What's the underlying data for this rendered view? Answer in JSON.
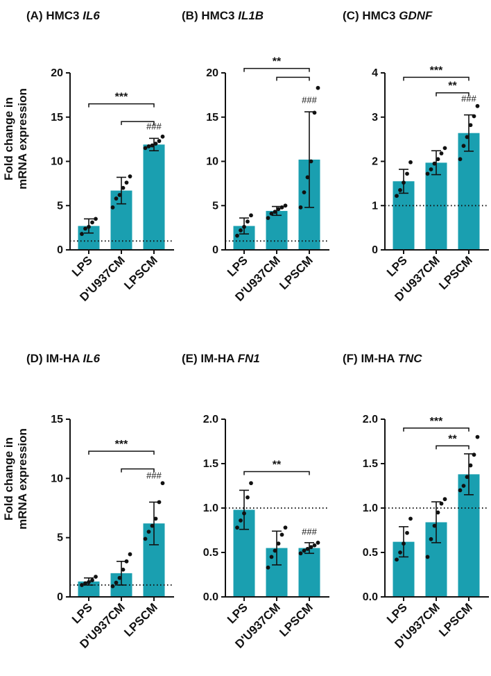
{
  "figure": {
    "ylabel_line1": "Fold change in",
    "ylabel_line2": "mRNA expression"
  },
  "colors": {
    "bar": "#1a9fb0",
    "stroke": "#111111"
  },
  "chart_data": [
    {
      "type": "bar",
      "label": "(A)",
      "title_prefix": "HMC3",
      "gene": "IL6",
      "categories": [
        "LPS",
        "D'U937CM",
        "LPSCM"
      ],
      "values": [
        2.7,
        6.7,
        11.9
      ],
      "errors": [
        0.8,
        1.5,
        0.7
      ],
      "points": [
        [
          1.8,
          2.4,
          2.6,
          3.1,
          3.5
        ],
        [
          4.8,
          5.8,
          6.2,
          7.0,
          7.6,
          8.3
        ],
        [
          11.5,
          11.7,
          11.8,
          12.0,
          12.3,
          12.8
        ]
      ],
      "ylim": [
        0,
        20
      ],
      "ticks": [
        0,
        5,
        10,
        15,
        20
      ],
      "baseline": 1,
      "brackets": [
        {
          "from": 0,
          "to": 2,
          "y": 16.5,
          "label": "***"
        },
        {
          "from": 1,
          "to": 2,
          "y": 14.5,
          "label": ""
        }
      ],
      "hash": {
        "bar": 2,
        "y": 13.6,
        "label": "###"
      }
    },
    {
      "type": "bar",
      "label": "(B)",
      "title_prefix": "HMC3",
      "gene": "IL1B",
      "categories": [
        "LPS",
        "D'U937CM",
        "LPSCM"
      ],
      "values": [
        2.7,
        4.4,
        10.2
      ],
      "errors": [
        0.9,
        0.5,
        5.4
      ],
      "points": [
        [
          1.6,
          2.2,
          2.6,
          3.2,
          3.9
        ],
        [
          3.6,
          4.1,
          4.3,
          4.6,
          4.8,
          5.0
        ],
        [
          4.8,
          6.5,
          8.2,
          10.0,
          15.5,
          18.3
        ]
      ],
      "ylim": [
        0,
        20
      ],
      "ticks": [
        0,
        5,
        10,
        15,
        20
      ],
      "baseline": 1,
      "brackets": [
        {
          "from": 0,
          "to": 2,
          "y": 20.5,
          "label": "**"
        },
        {
          "from": 1,
          "to": 2,
          "y": 19.5,
          "label": ""
        }
      ],
      "hash": {
        "bar": 2,
        "y": 16.6,
        "label": "###"
      }
    },
    {
      "type": "bar",
      "label": "(C)",
      "title_prefix": "HMC3",
      "gene": "GDNF",
      "categories": [
        "LPS",
        "D'U937CM",
        "LPSCM"
      ],
      "values": [
        1.55,
        1.97,
        2.64
      ],
      "errors": [
        0.27,
        0.27,
        0.41
      ],
      "points": [
        [
          1.22,
          1.35,
          1.52,
          1.72,
          1.98
        ],
        [
          1.72,
          1.82,
          1.95,
          2.05,
          2.18,
          2.3
        ],
        [
          2.05,
          2.35,
          2.55,
          2.82,
          3.02,
          3.25
        ]
      ],
      "ylim": [
        0,
        4
      ],
      "ticks": [
        0,
        1,
        2,
        3,
        4
      ],
      "baseline": 1,
      "brackets": [
        {
          "from": 0,
          "to": 2,
          "y": 3.9,
          "label": "***"
        },
        {
          "from": 1,
          "to": 2,
          "y": 3.55,
          "label": "**"
        }
      ],
      "hash": {
        "bar": 2,
        "y": 3.35,
        "label": "###"
      }
    },
    {
      "type": "bar",
      "label": "(D)",
      "title_prefix": "IM-HA",
      "gene": "IL6",
      "categories": [
        "LPS",
        "D'U937CM",
        "LPSCM"
      ],
      "values": [
        1.3,
        2.0,
        6.2
      ],
      "errors": [
        0.3,
        1.0,
        1.8
      ],
      "points": [
        [
          1.0,
          1.15,
          1.25,
          1.4,
          1.7
        ],
        [
          0.9,
          1.2,
          1.6,
          2.3,
          3.0,
          3.6
        ],
        [
          4.9,
          5.5,
          6.0,
          6.6,
          8.0,
          9.6
        ]
      ],
      "ylim": [
        0,
        15
      ],
      "ticks": [
        0,
        5,
        10,
        15
      ],
      "baseline": 1,
      "brackets": [
        {
          "from": 0,
          "to": 2,
          "y": 12.3,
          "label": "***"
        },
        {
          "from": 1,
          "to": 2,
          "y": 10.8,
          "label": ""
        }
      ],
      "hash": {
        "bar": 2,
        "y": 10.0,
        "label": "###"
      }
    },
    {
      "type": "bar",
      "label": "(E)",
      "title_prefix": "IM-HA",
      "gene": "FN1",
      "categories": [
        "LPS",
        "D'U937CM",
        "LPSCM"
      ],
      "values": [
        0.98,
        0.55,
        0.55
      ],
      "errors": [
        0.22,
        0.19,
        0.06
      ],
      "points": [
        [
          0.78,
          0.86,
          0.94,
          1.12,
          1.28
        ],
        [
          0.33,
          0.45,
          0.52,
          0.6,
          0.7,
          0.78
        ],
        [
          0.49,
          0.52,
          0.54,
          0.56,
          0.58,
          0.61
        ]
      ],
      "ylim": [
        0,
        2.0
      ],
      "ticks": [
        0.0,
        0.5,
        1.0,
        1.5,
        2.0
      ],
      "tick_format": 1,
      "baseline": 1,
      "brackets": [
        {
          "from": 0,
          "to": 2,
          "y": 1.41,
          "label": "**"
        }
      ],
      "hash": {
        "bar": 2,
        "y": 0.7,
        "label": "###"
      }
    },
    {
      "type": "bar",
      "label": "(F)",
      "title_prefix": "IM-HA",
      "gene": "TNC",
      "categories": [
        "LPS",
        "D'U937CM",
        "LPSCM"
      ],
      "values": [
        0.62,
        0.84,
        1.38
      ],
      "errors": [
        0.17,
        0.23,
        0.23
      ],
      "points": [
        [
          0.42,
          0.5,
          0.6,
          0.72,
          0.88
        ],
        [
          0.45,
          0.65,
          0.8,
          0.95,
          1.05,
          1.1
        ],
        [
          1.2,
          1.25,
          1.35,
          1.48,
          1.6,
          1.8
        ]
      ],
      "ylim": [
        0,
        2.0
      ],
      "ticks": [
        0.0,
        0.5,
        1.0,
        1.5,
        2.0
      ],
      "tick_format": 1,
      "baseline": 1,
      "brackets": [
        {
          "from": 0,
          "to": 2,
          "y": 1.9,
          "label": "***"
        },
        {
          "from": 1,
          "to": 2,
          "y": 1.7,
          "label": "**"
        }
      ],
      "hash": {
        "bar": 2,
        "y": 0,
        "label": ""
      }
    }
  ]
}
